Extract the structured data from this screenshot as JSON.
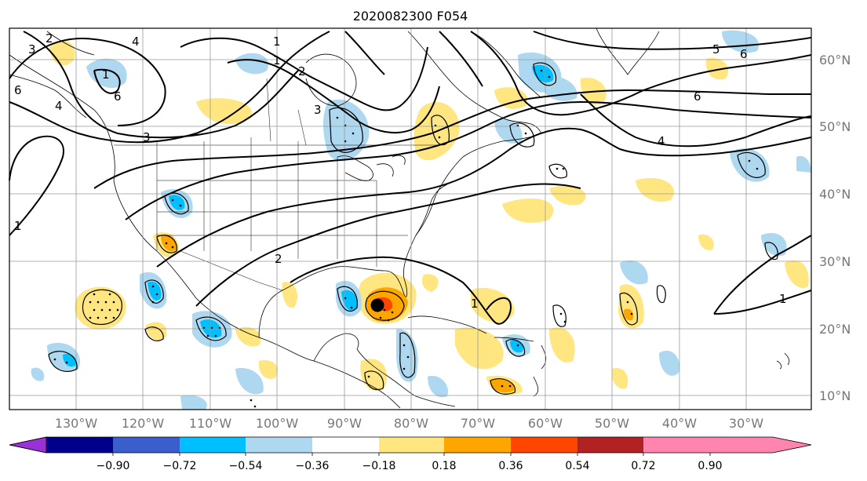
{
  "title": "2020082300 F054",
  "lon_labels": [
    "130°W",
    "120°W",
    "110°W",
    "100°W",
    "90°W",
    "80°W",
    "70°W",
    "60°W",
    "50°W",
    "40°W",
    "30°W"
  ],
  "lat_labels": [
    "60°N",
    "50°N",
    "40°N",
    "30°N",
    "20°N",
    "10°N"
  ],
  "contour_labels": [
    "2",
    "3",
    "4",
    "6",
    "1",
    "2",
    "3",
    "6",
    "3",
    "1",
    "4",
    "5",
    "6",
    "6",
    "4",
    "1",
    "1",
    "2",
    "1",
    "1"
  ],
  "colorbar": {
    "tick_labels": [
      "−0.90",
      "−0.72",
      "−0.54",
      "−0.36",
      "−0.18",
      "0.18",
      "0.36",
      "0.54",
      "0.72",
      "0.90"
    ],
    "colors": [
      "#9b30d9",
      "#00008b",
      "#3a5fcd",
      "#00bfff",
      "#add8f0",
      "#ffffff",
      "#ffe680",
      "#ffa500",
      "#ff4500",
      "#b22222",
      "#ff85b0"
    ]
  },
  "colors": {
    "land_line": "#000000",
    "grid": "#999999",
    "axis_label": "#777777"
  }
}
